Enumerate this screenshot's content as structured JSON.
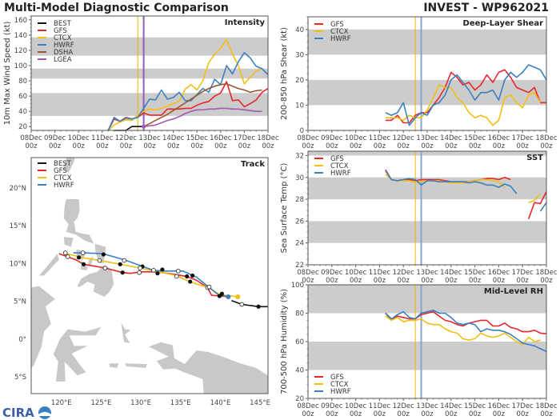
{
  "header": {
    "title": "Multi-Model Diagnostic Comparison",
    "storm": "INVEST - WP962021",
    "logo_text": "CIRA"
  },
  "colors": {
    "BEST": "#111111",
    "GFS": "#e8262c",
    "CTCX": "#f2bf12",
    "HWRF": "#3a80c0",
    "DSHA": "#9b5a2e",
    "LGEA": "#a25ab4",
    "band": "#cccccc",
    "vline_ctcx": "#f0b400",
    "vline_intensity": "#9b59b6",
    "vline_other": "#8fa2c8",
    "land": "#c8c8c8"
  },
  "x_axis": {
    "ticks": [
      "08Dec",
      "09Dec",
      "10Dec",
      "11Dec",
      "12Dec",
      "13Dec",
      "14Dec",
      "15Dec",
      "16Dec",
      "17Dec",
      "18Dec"
    ],
    "tick_sub": "00z",
    "range": [
      "08Dec 00z",
      "18Dec 00z"
    ]
  },
  "vlines": [
    "12Dec 12z",
    "12Dec 18z"
  ],
  "chart_data": [
    {
      "id": "intensity",
      "type": "line",
      "title": "Intensity",
      "ylabel": "10m Max Wind Speed (kt)",
      "ylim": [
        15,
        165
      ],
      "yticks": [
        20,
        40,
        60,
        80,
        100,
        120,
        140,
        160
      ],
      "bands": [
        [
          34,
          64
        ],
        [
          83,
          96
        ],
        [
          113,
          137
        ]
      ],
      "legend": "top-left",
      "times": [
        "11Dec 06z",
        "11Dec 12z",
        "11Dec 18z",
        "12Dec 00z",
        "12Dec 06z",
        "12Dec 12z",
        "12Dec 18z",
        "13Dec 00z",
        "13Dec 06z",
        "13Dec 12z",
        "13Dec 18z",
        "14Dec 00z",
        "14Dec 06z",
        "14Dec 12z",
        "14Dec 18z",
        "15Dec 00z",
        "15Dec 06z",
        "15Dec 12z",
        "15Dec 18z",
        "16Dec 00z",
        "16Dec 06z",
        "16Dec 12z",
        "16Dec 18z",
        "17Dec 00z",
        "17Dec 06z",
        "17Dec 12z",
        "17Dec 18z",
        "18Dec 00z"
      ],
      "series": [
        {
          "name": "BEST",
          "values": [
            null,
            15,
            15,
            15,
            20,
            20,
            20,
            null,
            null,
            null,
            null,
            null,
            null,
            null,
            null,
            null,
            null,
            null,
            null,
            null,
            null,
            null,
            null,
            null,
            null,
            null,
            null,
            null
          ]
        },
        {
          "name": "GFS",
          "values": [
            15,
            30,
            27,
            32,
            30,
            32,
            38,
            35,
            35,
            35,
            43,
            43,
            43,
            44,
            44,
            48,
            51,
            53,
            60,
            64,
            79,
            54,
            55,
            46,
            50,
            55,
            65,
            70
          ]
        },
        {
          "name": "CTCX",
          "values": [
            15,
            22,
            26,
            29,
            28,
            35,
            40,
            43,
            42,
            44,
            47,
            50,
            53,
            69,
            75,
            68,
            80,
            104,
            115,
            123,
            134,
            115,
            100,
            76,
            85,
            93,
            96,
            null
          ]
        },
        {
          "name": "HWRF",
          "values": [
            15,
            32,
            27,
            31,
            30,
            32,
            44,
            56,
            55,
            68,
            56,
            58,
            65,
            54,
            54,
            62,
            70,
            65,
            82,
            75,
            100,
            89,
            105,
            117,
            110,
            99,
            96,
            88
          ]
        },
        {
          "name": "DSHA",
          "values": [
            null,
            null,
            null,
            null,
            null,
            null,
            20,
            24,
            28,
            32,
            36,
            41,
            46,
            51,
            56,
            61,
            66,
            70,
            73,
            75,
            76,
            73,
            70,
            68,
            65,
            67,
            68,
            null
          ]
        },
        {
          "name": "LGEA",
          "values": [
            null,
            null,
            null,
            null,
            null,
            null,
            20,
            21,
            22,
            25,
            28,
            30,
            33,
            37,
            40,
            42,
            42,
            43,
            43,
            44,
            44,
            43,
            43,
            42,
            41,
            40,
            40,
            null
          ]
        }
      ]
    },
    {
      "id": "shear",
      "type": "line",
      "title": "Deep-Layer Shear",
      "ylabel": "200-850 hPa Shear (kt)",
      "ylim": [
        0,
        45
      ],
      "yticks": [
        0,
        10,
        20,
        30,
        40
      ],
      "bands": [
        [
          10,
          20
        ],
        [
          30,
          40
        ]
      ],
      "legend": "top-left",
      "series": [
        {
          "name": "GFS",
          "values": [
            4,
            4,
            6,
            3,
            3,
            6,
            7,
            7,
            10,
            13,
            17,
            23,
            21,
            18,
            19,
            16,
            18,
            22,
            19,
            23,
            24,
            21,
            17,
            16,
            15,
            17,
            11,
            11
          ]
        },
        {
          "name": "CTCX",
          "values": [
            5,
            5,
            5,
            4,
            6,
            5,
            5,
            8,
            13,
            18,
            17,
            17,
            13,
            11,
            7,
            5,
            6,
            5,
            2,
            4,
            13,
            14,
            11,
            9,
            14,
            15,
            11,
            null
          ]
        },
        {
          "name": "HWRF",
          "values": [
            7,
            6,
            7,
            11,
            2,
            5,
            7,
            6,
            10,
            11,
            14,
            20,
            22,
            19,
            16,
            12,
            15,
            15,
            16,
            12,
            20,
            23,
            21,
            23,
            26,
            25,
            24,
            20
          ]
        }
      ]
    },
    {
      "id": "sst",
      "type": "line",
      "title": "SST",
      "ylabel": "Sea Surface Temp (°C)",
      "ylim": [
        22,
        32.4
      ],
      "yticks": [
        22,
        24,
        26,
        28,
        30,
        32
      ],
      "bands": [
        [
          24,
          26
        ],
        [
          28,
          30
        ],
        [
          32,
          32.4
        ]
      ],
      "legend": "top-left",
      "series": [
        {
          "name": "GFS",
          "values": [
            30.7,
            29.8,
            29.7,
            29.8,
            29.8,
            29.7,
            29.8,
            29.8,
            29.8,
            29.8,
            29.7,
            29.6,
            29.6,
            29.6,
            29.6,
            29.7,
            29.8,
            29.9,
            29.9,
            29.8,
            30.0,
            29.8,
            null,
            null,
            26.2,
            27.7,
            27.6,
            28.7
          ]
        },
        {
          "name": "CTCX",
          "values": [
            30.3,
            29.8,
            29.7,
            29.7,
            29.7,
            29.6,
            29.6,
            29.7,
            29.7,
            29.7,
            29.6,
            29.5,
            29.5,
            29.5,
            29.6,
            29.7,
            29.8,
            29.8,
            29.7,
            29.6,
            29.1,
            null,
            null,
            null,
            27.7,
            27.9,
            28.5,
            null
          ]
        },
        {
          "name": "HWRF",
          "values": [
            30.6,
            29.8,
            29.7,
            29.8,
            29.9,
            29.8,
            29.3,
            29.7,
            29.7,
            29.6,
            29.6,
            29.6,
            29.6,
            29.6,
            29.5,
            29.6,
            29.5,
            29.3,
            29.3,
            29.1,
            29.4,
            29.2,
            28.5,
            null,
            null,
            null,
            26.9,
            27.7
          ]
        }
      ]
    },
    {
      "id": "rh",
      "type": "line",
      "title": "Mid-Level RH",
      "ylabel": "700-500 hPa Humidity (%)",
      "ylim": [
        20,
        100
      ],
      "yticks": [
        20,
        40,
        60,
        80,
        100
      ],
      "bands": [
        [
          40,
          60
        ],
        [
          80,
          100
        ]
      ],
      "legend": "bottom-left",
      "series": [
        {
          "name": "GFS",
          "values": [
            80,
            75,
            78,
            77,
            76,
            76,
            79,
            80,
            81,
            78,
            75,
            74,
            72,
            71,
            73,
            74,
            75,
            75,
            71,
            71,
            73,
            70,
            69,
            67,
            67,
            68,
            66,
            65.5
          ]
        },
        {
          "name": "CTCX",
          "values": [
            78,
            75,
            77,
            74,
            75,
            75,
            76,
            73,
            72,
            72,
            69,
            67,
            66,
            62,
            61,
            62,
            66,
            64,
            63,
            64,
            66,
            63,
            60,
            58,
            63,
            60,
            61,
            null
          ]
        },
        {
          "name": "HWRF",
          "values": [
            80,
            76,
            79,
            81,
            77,
            76,
            80,
            81,
            82,
            80,
            80,
            77,
            73,
            72,
            73,
            72,
            67,
            69,
            68,
            68,
            67,
            65,
            62,
            59,
            58,
            57,
            55,
            53
          ]
        }
      ]
    },
    {
      "id": "track",
      "type": "scatter",
      "title": "Track",
      "legend": "top-left",
      "lon_range": [
        116.2,
        146
      ],
      "lat_range": [
        -7.2,
        24
      ],
      "lon_ticks": [
        120,
        125,
        130,
        135,
        140,
        145
      ],
      "lon_labels": [
        "120°E",
        "125°E",
        "130°E",
        "135°E",
        "140°E",
        "145°E"
      ],
      "lat_ticks": [
        -5,
        0,
        5,
        10,
        15,
        20
      ],
      "lat_labels": [
        "5°S",
        "0°",
        "5°N",
        "10°N",
        "15°N",
        "20°N"
      ],
      "series": [
        {
          "name": "BEST",
          "points": [
            [
              141.4,
              5.1
            ],
            [
              142.7,
              4.6
            ],
            [
              144.8,
              4.3
            ],
            [
              146.0,
              4.3
            ]
          ]
        },
        {
          "name": "GFS",
          "points": [
            [
              119.7,
              11.3
            ],
            [
              121.8,
              10.5
            ],
            [
              122.8,
              9.9
            ],
            [
              125.5,
              9.4
            ],
            [
              127.7,
              8.8
            ],
            [
              128.7,
              8.7
            ],
            [
              129.9,
              8.9
            ],
            [
              132.0,
              8.9
            ],
            [
              134.0,
              8.6
            ],
            [
              135.7,
              8.3
            ],
            [
              137.0,
              7.8
            ],
            [
              138.4,
              6.8
            ],
            [
              138.9,
              5.8
            ],
            [
              139.9,
              5.7
            ],
            [
              141.0,
              5.6
            ]
          ]
        },
        {
          "name": "CTCX",
          "points": [
            [
              120.4,
              11.4
            ],
            [
              122.5,
              10.8
            ],
            [
              124.8,
              10.4
            ],
            [
              127.4,
              9.9
            ],
            [
              129.9,
              9.4
            ],
            [
              132.3,
              8.9
            ],
            [
              134.5,
              8.4
            ],
            [
              135.7,
              7.8
            ],
            [
              137.0,
              7.3
            ],
            [
              138.6,
              6.8
            ],
            [
              139.9,
              5.9
            ],
            [
              142.2,
              5.6
            ]
          ]
        },
        {
          "name": "HWRF",
          "points": [
            [
              121.5,
              11.4
            ],
            [
              122.8,
              11.4
            ],
            [
              125.2,
              11.3
            ],
            [
              127.9,
              10.5
            ],
            [
              130.3,
              9.6
            ],
            [
              131.6,
              9.1
            ],
            [
              133.0,
              9.0
            ],
            [
              135.3,
              9.0
            ],
            [
              137.0,
              8.2
            ],
            [
              138.4,
              7.0
            ],
            [
              139.7,
              5.9
            ],
            [
              141.0,
              5.6
            ]
          ]
        }
      ],
      "end_markers": [
        {
          "series": "CTCX",
          "point": [
            142.2,
            5.6
          ]
        },
        {
          "series": "HWRF",
          "point": [
            141.0,
            5.6
          ]
        }
      ],
      "markers_00z": [
        [
          125.3,
          11.2
        ],
        [
          122.2,
          10.8
        ],
        [
          122.8,
          9.9
        ],
        [
          127.4,
          9.9
        ],
        [
          127.7,
          8.8
        ],
        [
          130.2,
          9.6
        ],
        [
          132.7,
          9.2
        ],
        [
          132.1,
          8.7
        ],
        [
          135.8,
          8.3
        ],
        [
          136.5,
          8.4
        ],
        [
          136.2,
          7.6
        ],
        [
          140.2,
          6.0
        ],
        [
          139.9,
          5.7
        ],
        [
          144.8,
          4.3
        ]
      ],
      "markers_12z": [
        [
          120.5,
          11.4
        ],
        [
          120.8,
          10.9
        ],
        [
          122.7,
          11.4
        ],
        [
          124.8,
          10.4
        ],
        [
          125.5,
          9.4
        ],
        [
          127.9,
          10.4
        ],
        [
          129.9,
          9.4
        ],
        [
          129.8,
          8.8
        ],
        [
          131.6,
          9.1
        ],
        [
          134.7,
          9.0
        ],
        [
          134.5,
          8.3
        ],
        [
          138.4,
          6.8
        ],
        [
          138.6,
          6.9
        ],
        [
          142.7,
          4.6
        ]
      ]
    }
  ]
}
